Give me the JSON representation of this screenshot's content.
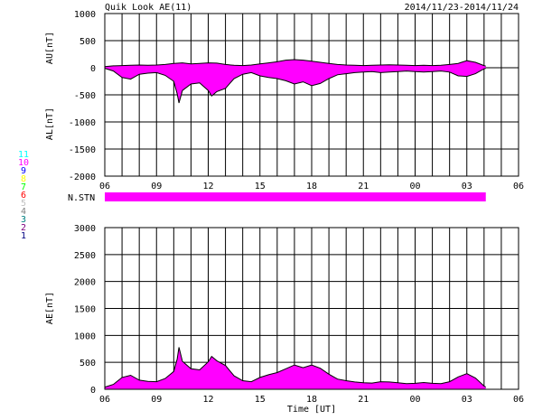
{
  "header": {
    "title": "Quik Look AE(11)",
    "date_range": "2014/11/23-2014/11/24"
  },
  "colors": {
    "fill": "#ff00ff",
    "line": "#000000",
    "grid": "#000000",
    "background": "#ffffff"
  },
  "station_legend": [
    {
      "label": "11",
      "color": "#00ffff"
    },
    {
      "label": "10",
      "color": "#ff00ff"
    },
    {
      "label": "9",
      "color": "#0000ff"
    },
    {
      "label": "8",
      "color": "#ffff00"
    },
    {
      "label": "7",
      "color": "#00ff00"
    },
    {
      "label": "6",
      "color": "#ff0000"
    },
    {
      "label": "5",
      "color": "#c0c0c0"
    },
    {
      "label": "4",
      "color": "#808080"
    },
    {
      "label": "3",
      "color": "#008080"
    },
    {
      "label": "2",
      "color": "#800080"
    },
    {
      "label": "1",
      "color": "#000080"
    }
  ],
  "chart_data": [
    {
      "type": "area",
      "name": "upper-panel",
      "ylabel_top": "AU[nT]",
      "ylabel_bottom": "AL[nT]",
      "ylim": [
        -2000,
        1000
      ],
      "yticks": [
        1000,
        500,
        0,
        -500,
        -1000,
        -1500,
        -2000
      ],
      "xlim": [
        6,
        30
      ],
      "xticks": [
        "06",
        "09",
        "12",
        "15",
        "18",
        "21",
        "00",
        "03",
        "06"
      ],
      "au": [
        [
          6.0,
          20
        ],
        [
          6.5,
          35
        ],
        [
          7.0,
          40
        ],
        [
          7.5,
          45
        ],
        [
          8.0,
          50
        ],
        [
          8.5,
          45
        ],
        [
          9.0,
          50
        ],
        [
          9.5,
          60
        ],
        [
          10.0,
          80
        ],
        [
          10.5,
          90
        ],
        [
          11.0,
          70
        ],
        [
          11.5,
          80
        ],
        [
          12.0,
          90
        ],
        [
          12.5,
          85
        ],
        [
          13.0,
          60
        ],
        [
          13.5,
          45
        ],
        [
          14.0,
          40
        ],
        [
          14.5,
          50
        ],
        [
          15.0,
          70
        ],
        [
          15.5,
          90
        ],
        [
          16.0,
          110
        ],
        [
          16.5,
          140
        ],
        [
          17.0,
          150
        ],
        [
          17.5,
          140
        ],
        [
          18.0,
          120
        ],
        [
          18.5,
          100
        ],
        [
          19.0,
          80
        ],
        [
          19.5,
          60
        ],
        [
          20.0,
          50
        ],
        [
          20.5,
          45
        ],
        [
          21.0,
          40
        ],
        [
          21.5,
          45
        ],
        [
          22.0,
          50
        ],
        [
          22.5,
          55
        ],
        [
          23.0,
          50
        ],
        [
          23.5,
          45
        ],
        [
          24.0,
          40
        ],
        [
          24.5,
          45
        ],
        [
          25.0,
          40
        ],
        [
          25.5,
          45
        ],
        [
          26.0,
          60
        ],
        [
          26.5,
          80
        ],
        [
          27.0,
          130
        ],
        [
          27.5,
          100
        ],
        [
          28.0,
          40
        ],
        [
          28.1,
          30
        ]
      ],
      "al": [
        [
          6.0,
          -10
        ],
        [
          6.5,
          -60
        ],
        [
          7.0,
          -180
        ],
        [
          7.5,
          -210
        ],
        [
          8.0,
          -120
        ],
        [
          8.5,
          -100
        ],
        [
          9.0,
          -90
        ],
        [
          9.5,
          -140
        ],
        [
          10.0,
          -250
        ],
        [
          10.2,
          -480
        ],
        [
          10.3,
          -650
        ],
        [
          10.5,
          -420
        ],
        [
          11.0,
          -300
        ],
        [
          11.5,
          -280
        ],
        [
          12.0,
          -420
        ],
        [
          12.2,
          -520
        ],
        [
          12.5,
          -440
        ],
        [
          13.0,
          -380
        ],
        [
          13.5,
          -200
        ],
        [
          14.0,
          -120
        ],
        [
          14.5,
          -90
        ],
        [
          15.0,
          -150
        ],
        [
          15.5,
          -180
        ],
        [
          16.0,
          -200
        ],
        [
          16.5,
          -240
        ],
        [
          17.0,
          -300
        ],
        [
          17.5,
          -260
        ],
        [
          18.0,
          -330
        ],
        [
          18.5,
          -290
        ],
        [
          19.0,
          -200
        ],
        [
          19.5,
          -130
        ],
        [
          20.0,
          -110
        ],
        [
          20.5,
          -90
        ],
        [
          21.0,
          -80
        ],
        [
          21.5,
          -70
        ],
        [
          22.0,
          -90
        ],
        [
          22.5,
          -80
        ],
        [
          23.0,
          -70
        ],
        [
          23.5,
          -60
        ],
        [
          24.0,
          -70
        ],
        [
          24.5,
          -80
        ],
        [
          25.0,
          -70
        ],
        [
          25.5,
          -60
        ],
        [
          26.0,
          -80
        ],
        [
          26.5,
          -150
        ],
        [
          27.0,
          -160
        ],
        [
          27.5,
          -110
        ],
        [
          28.0,
          -20
        ],
        [
          28.1,
          -10
        ]
      ]
    },
    {
      "type": "bar",
      "name": "station-count",
      "ylabel": "N.STN",
      "x_start": 6.0,
      "x_end": 28.1,
      "value": 10
    },
    {
      "type": "area",
      "name": "lower-panel",
      "ylabel": "AE[nT]",
      "xlabel": "Time [UT]",
      "ylim": [
        0,
        3000
      ],
      "yticks": [
        3000,
        2500,
        2000,
        1500,
        1000,
        500,
        0
      ],
      "xlim": [
        6,
        30
      ],
      "xticks": [
        "06",
        "09",
        "12",
        "15",
        "18",
        "21",
        "00",
        "03",
        "06"
      ],
      "ae": [
        [
          6.0,
          40
        ],
        [
          6.5,
          90
        ],
        [
          7.0,
          220
        ],
        [
          7.5,
          260
        ],
        [
          8.0,
          170
        ],
        [
          8.5,
          145
        ],
        [
          9.0,
          140
        ],
        [
          9.5,
          200
        ],
        [
          10.0,
          330
        ],
        [
          10.2,
          560
        ],
        [
          10.3,
          780
        ],
        [
          10.5,
          520
        ],
        [
          11.0,
          380
        ],
        [
          11.5,
          360
        ],
        [
          12.0,
          510
        ],
        [
          12.2,
          610
        ],
        [
          12.5,
          530
        ],
        [
          13.0,
          440
        ],
        [
          13.5,
          250
        ],
        [
          14.0,
          160
        ],
        [
          14.5,
          140
        ],
        [
          15.0,
          220
        ],
        [
          15.5,
          270
        ],
        [
          16.0,
          310
        ],
        [
          16.5,
          380
        ],
        [
          17.0,
          450
        ],
        [
          17.5,
          400
        ],
        [
          18.0,
          450
        ],
        [
          18.5,
          390
        ],
        [
          19.0,
          280
        ],
        [
          19.5,
          190
        ],
        [
          20.0,
          160
        ],
        [
          20.5,
          135
        ],
        [
          21.0,
          120
        ],
        [
          21.5,
          115
        ],
        [
          22.0,
          140
        ],
        [
          22.5,
          135
        ],
        [
          23.0,
          120
        ],
        [
          23.5,
          105
        ],
        [
          24.0,
          110
        ],
        [
          24.5,
          125
        ],
        [
          25.0,
          110
        ],
        [
          25.5,
          105
        ],
        [
          26.0,
          140
        ],
        [
          26.5,
          230
        ],
        [
          27.0,
          290
        ],
        [
          27.5,
          210
        ],
        [
          28.0,
          60
        ],
        [
          28.1,
          40
        ]
      ]
    }
  ]
}
